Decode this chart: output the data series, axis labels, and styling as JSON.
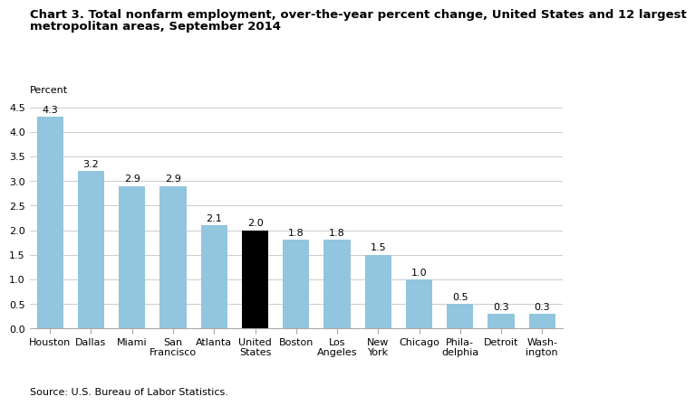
{
  "title_line1": "Chart 3. Total nonfarm employment, over-the-year percent change, United States and 12 largest",
  "title_line2": "metropolitan areas, September 2014",
  "ylabel": "Percent",
  "categories": [
    "Houston",
    "Dallas",
    "Miami",
    "San\nFrancisco",
    "Atlanta",
    "United\nStates",
    "Boston",
    "Los\nAngeles",
    "New\nYork",
    "Chicago",
    "Phila-\ndelphia",
    "Detroit",
    "Wash-\nington"
  ],
  "values": [
    4.3,
    3.2,
    2.9,
    2.9,
    2.1,
    2.0,
    1.8,
    1.8,
    1.5,
    1.0,
    0.5,
    0.3,
    0.3
  ],
  "bar_colors": [
    "#92C5DE",
    "#92C5DE",
    "#92C5DE",
    "#92C5DE",
    "#92C5DE",
    "#000000",
    "#92C5DE",
    "#92C5DE",
    "#92C5DE",
    "#92C5DE",
    "#92C5DE",
    "#92C5DE",
    "#92C5DE"
  ],
  "ylim": [
    0,
    4.5
  ],
  "yticks": [
    0.0,
    0.5,
    1.0,
    1.5,
    2.0,
    2.5,
    3.0,
    3.5,
    4.0,
    4.5
  ],
  "source": "Source: U.S. Bureau of Labor Statistics.",
  "title_fontsize": 9.5,
  "ylabel_fontsize": 8,
  "tick_fontsize": 8,
  "value_fontsize": 8,
  "source_fontsize": 8,
  "grid_color": "#cccccc",
  "spine_color": "#aaaaaa"
}
